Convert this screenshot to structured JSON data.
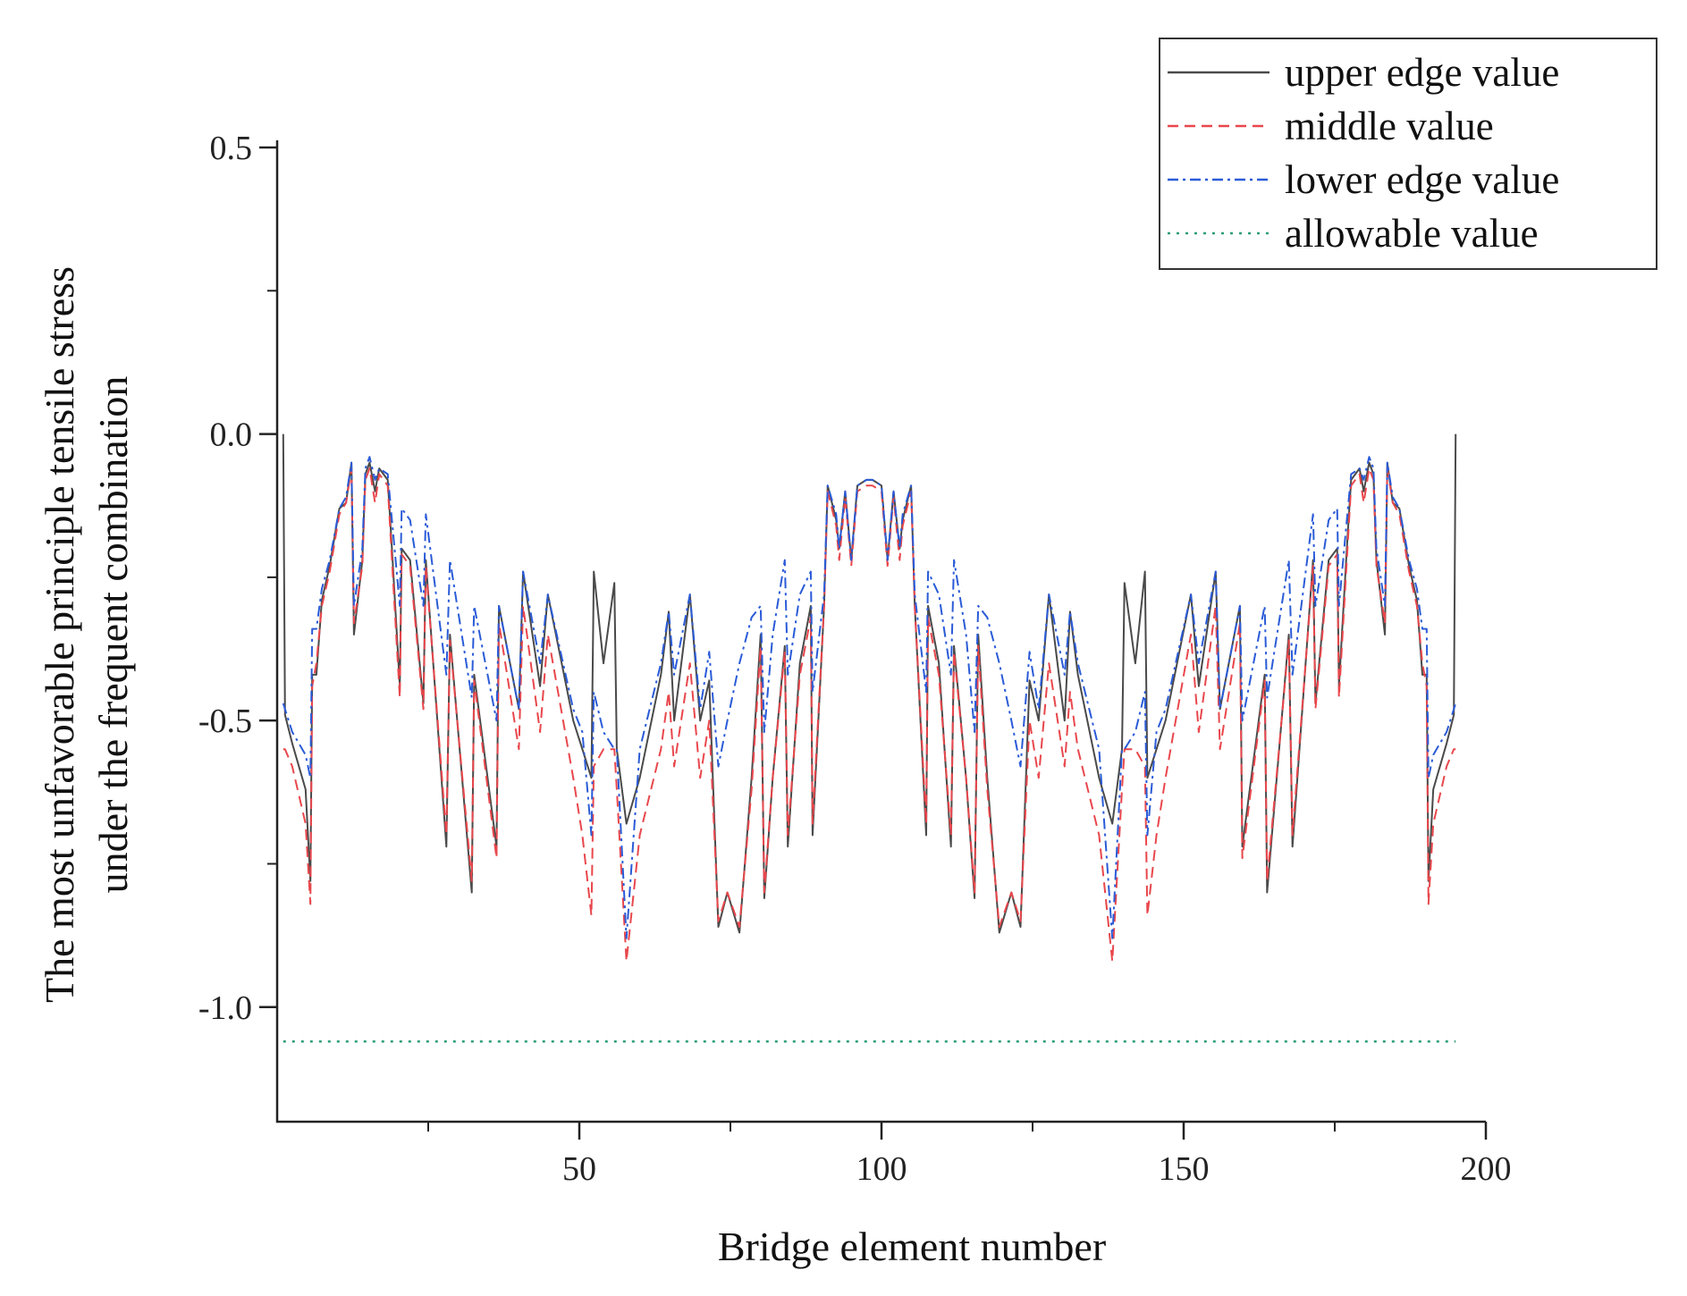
{
  "chart_data": {
    "type": "line",
    "title": "",
    "xlabel": "Bridge element number",
    "ylabel": [
      "The most unfavorable principle tensile stress",
      "under the frequent combination"
    ],
    "xlim": [
      0,
      200
    ],
    "ylim": [
      -1.2,
      0.5
    ],
    "x_ticks": [
      50,
      100,
      150,
      200
    ],
    "x_tick_labels": [
      "50",
      "100",
      "150",
      "200"
    ],
    "y_ticks": [
      0.5,
      0.0,
      -0.5,
      -1.0
    ],
    "y_tick_labels": [
      "0.5",
      "0.0",
      "-0.5",
      "-1.0"
    ],
    "grid": false,
    "legend_position": "top-right",
    "x": [
      1,
      1.3,
      2.5,
      4.7,
      5.5,
      5.8,
      6.5,
      7.4,
      8.7,
      10.3,
      11.4,
      12.3,
      12.7,
      14.1,
      14.6,
      15.3,
      16.2,
      16.9,
      18.3,
      19,
      20.3,
      20.6,
      22,
      24.2,
      24.6,
      28,
      28.6,
      32.2,
      32.6,
      36.3,
      36.7,
      40,
      40.7,
      43.5,
      44.8,
      49,
      50.5,
      52,
      52.4,
      54,
      55.8,
      56.2,
      57.8,
      60,
      63.5,
      64.8,
      65.7,
      68.3,
      70,
      71.5,
      73,
      74.5,
      76.5,
      78.5,
      80,
      80.6,
      82,
      84,
      84.5,
      86.5,
      88.3,
      88.6,
      90.5,
      91.1,
      92.5,
      93,
      94,
      95,
      96,
      97.5,
      98.5,
      100,
      101,
      102,
      103,
      103.5,
      104.9,
      105.5,
      107.4,
      107.7,
      109.5,
      111.5,
      112,
      114,
      115.4,
      116,
      117.5,
      119.5,
      121.5,
      123,
      124.5,
      126,
      127.7,
      130.3,
      131.2,
      132.5,
      136,
      138.2,
      139.8,
      140.2,
      142,
      143.6,
      144,
      145.5,
      147,
      151.2,
      152.5,
      155.3,
      156,
      159.3,
      159.7,
      163.4,
      163.8,
      167.4,
      168,
      171.4,
      171.8,
      174,
      175.4,
      175.7,
      177,
      177.7,
      179.1,
      179.8,
      180.7,
      181.4,
      181.9,
      183.3,
      183.7,
      184.6,
      185.7,
      187.3,
      188.6,
      189.5,
      190.2,
      190.5,
      191.3,
      193.5,
      194.7,
      195
    ],
    "series": [
      {
        "name": "upper edge value",
        "color": "#4a4a4a",
        "dash": "solid",
        "values": [
          0.0,
          -0.49,
          -0.54,
          -0.62,
          -0.78,
          -0.42,
          -0.42,
          -0.29,
          -0.23,
          -0.13,
          -0.12,
          -0.05,
          -0.35,
          -0.22,
          -0.07,
          -0.05,
          -0.1,
          -0.06,
          -0.08,
          -0.2,
          -0.44,
          -0.2,
          -0.22,
          -0.47,
          -0.22,
          -0.72,
          -0.35,
          -0.8,
          -0.42,
          -0.72,
          -0.3,
          -0.48,
          -0.24,
          -0.44,
          -0.28,
          -0.5,
          -0.55,
          -0.6,
          -0.24,
          -0.4,
          -0.26,
          -0.55,
          -0.68,
          -0.6,
          -0.42,
          -0.31,
          -0.5,
          -0.28,
          -0.5,
          -0.43,
          -0.86,
          -0.8,
          -0.87,
          -0.6,
          -0.35,
          -0.81,
          -0.6,
          -0.37,
          -0.72,
          -0.4,
          -0.3,
          -0.7,
          -0.3,
          -0.09,
          -0.15,
          -0.2,
          -0.1,
          -0.22,
          -0.09,
          -0.08,
          -0.08,
          -0.09,
          -0.22,
          -0.1,
          -0.2,
          -0.15,
          -0.09,
          -0.3,
          -0.7,
          -0.3,
          -0.4,
          -0.72,
          -0.37,
          -0.6,
          -0.81,
          -0.35,
          -0.6,
          -0.87,
          -0.8,
          -0.86,
          -0.43,
          -0.5,
          -0.28,
          -0.5,
          -0.31,
          -0.42,
          -0.6,
          -0.68,
          -0.55,
          -0.26,
          -0.4,
          -0.24,
          -0.6,
          -0.55,
          -0.5,
          -0.28,
          -0.44,
          -0.24,
          -0.48,
          -0.3,
          -0.72,
          -0.42,
          -0.8,
          -0.35,
          -0.72,
          -0.22,
          -0.47,
          -0.22,
          -0.2,
          -0.44,
          -0.2,
          -0.08,
          -0.06,
          -0.1,
          -0.05,
          -0.07,
          -0.22,
          -0.35,
          -0.05,
          -0.12,
          -0.13,
          -0.23,
          -0.29,
          -0.42,
          -0.42,
          -0.78,
          -0.62,
          -0.54,
          -0.49,
          0.0
        ]
      },
      {
        "name": "middle value",
        "color": "#e8474c",
        "dash": "dashed",
        "values": [
          -0.55,
          -0.55,
          -0.58,
          -0.68,
          -0.82,
          -0.44,
          -0.4,
          -0.3,
          -0.24,
          -0.14,
          -0.12,
          -0.06,
          -0.33,
          -0.23,
          -0.08,
          -0.06,
          -0.12,
          -0.07,
          -0.09,
          -0.22,
          -0.46,
          -0.21,
          -0.23,
          -0.48,
          -0.23,
          -0.7,
          -0.36,
          -0.78,
          -0.43,
          -0.74,
          -0.33,
          -0.55,
          -0.3,
          -0.52,
          -0.35,
          -0.6,
          -0.7,
          -0.84,
          -0.58,
          -0.55,
          -0.55,
          -0.62,
          -0.92,
          -0.7,
          -0.55,
          -0.45,
          -0.58,
          -0.4,
          -0.6,
          -0.5,
          -0.85,
          -0.8,
          -0.86,
          -0.62,
          -0.37,
          -0.8,
          -0.6,
          -0.38,
          -0.7,
          -0.42,
          -0.32,
          -0.68,
          -0.3,
          -0.1,
          -0.16,
          -0.22,
          -0.11,
          -0.23,
          -0.1,
          -0.09,
          -0.09,
          -0.1,
          -0.23,
          -0.11,
          -0.22,
          -0.16,
          -0.1,
          -0.3,
          -0.68,
          -0.32,
          -0.42,
          -0.7,
          -0.38,
          -0.6,
          -0.8,
          -0.37,
          -0.62,
          -0.86,
          -0.8,
          -0.85,
          -0.5,
          -0.6,
          -0.4,
          -0.58,
          -0.45,
          -0.55,
          -0.7,
          -0.92,
          -0.62,
          -0.55,
          -0.55,
          -0.58,
          -0.84,
          -0.7,
          -0.6,
          -0.35,
          -0.52,
          -0.3,
          -0.55,
          -0.33,
          -0.74,
          -0.43,
          -0.78,
          -0.36,
          -0.7,
          -0.23,
          -0.48,
          -0.23,
          -0.21,
          -0.46,
          -0.22,
          -0.09,
          -0.07,
          -0.12,
          -0.06,
          -0.08,
          -0.23,
          -0.33,
          -0.06,
          -0.12,
          -0.14,
          -0.24,
          -0.3,
          -0.4,
          -0.44,
          -0.82,
          -0.68,
          -0.58,
          -0.55,
          -0.55
        ]
      },
      {
        "name": "lower edge value",
        "color": "#2a5bd7",
        "dash": "dashdot",
        "values": [
          -0.47,
          -0.48,
          -0.52,
          -0.56,
          -0.6,
          -0.34,
          -0.34,
          -0.27,
          -0.22,
          -0.13,
          -0.11,
          -0.05,
          -0.3,
          -0.2,
          -0.06,
          -0.04,
          -0.08,
          -0.06,
          -0.07,
          -0.15,
          -0.3,
          -0.13,
          -0.15,
          -0.3,
          -0.14,
          -0.42,
          -0.22,
          -0.46,
          -0.3,
          -0.5,
          -0.3,
          -0.48,
          -0.24,
          -0.4,
          -0.28,
          -0.48,
          -0.52,
          -0.7,
          -0.45,
          -0.52,
          -0.55,
          -0.55,
          -0.88,
          -0.55,
          -0.4,
          -0.31,
          -0.42,
          -0.28,
          -0.48,
          -0.38,
          -0.58,
          -0.5,
          -0.4,
          -0.32,
          -0.3,
          -0.52,
          -0.35,
          -0.22,
          -0.42,
          -0.28,
          -0.24,
          -0.45,
          -0.28,
          -0.09,
          -0.14,
          -0.2,
          -0.1,
          -0.22,
          -0.09,
          -0.08,
          -0.08,
          -0.09,
          -0.22,
          -0.1,
          -0.2,
          -0.14,
          -0.09,
          -0.28,
          -0.45,
          -0.24,
          -0.28,
          -0.42,
          -0.22,
          -0.35,
          -0.52,
          -0.3,
          -0.32,
          -0.4,
          -0.5,
          -0.58,
          -0.38,
          -0.48,
          -0.28,
          -0.42,
          -0.31,
          -0.4,
          -0.55,
          -0.88,
          -0.55,
          -0.55,
          -0.52,
          -0.45,
          -0.7,
          -0.52,
          -0.48,
          -0.28,
          -0.4,
          -0.24,
          -0.48,
          -0.3,
          -0.5,
          -0.3,
          -0.46,
          -0.22,
          -0.42,
          -0.14,
          -0.3,
          -0.15,
          -0.13,
          -0.3,
          -0.15,
          -0.07,
          -0.06,
          -0.08,
          -0.04,
          -0.06,
          -0.2,
          -0.3,
          -0.05,
          -0.11,
          -0.13,
          -0.22,
          -0.27,
          -0.34,
          -0.34,
          -0.6,
          -0.56,
          -0.52,
          -0.48,
          -0.47
        ]
      },
      {
        "name": "allowable value",
        "color": "#2e9e78",
        "dash": "dotted",
        "constant": -1.06,
        "x_range": [
          1,
          195
        ]
      }
    ]
  }
}
